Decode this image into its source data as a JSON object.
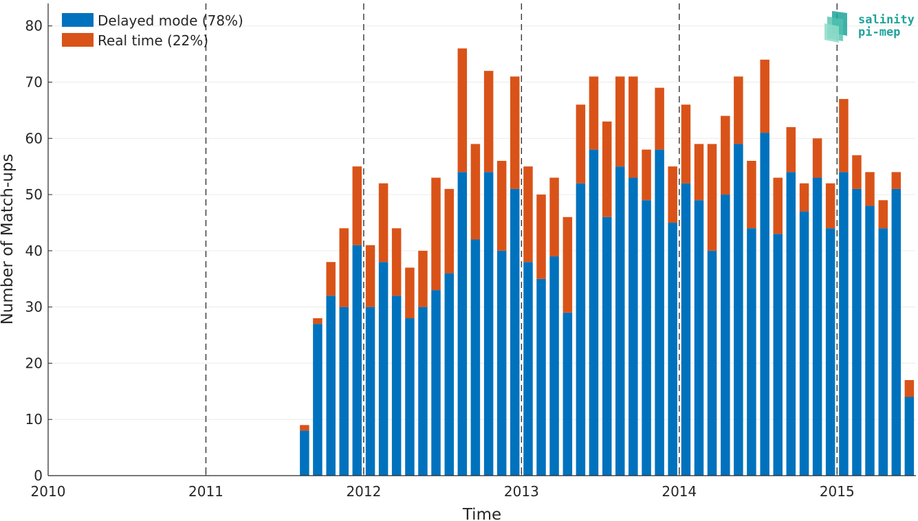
{
  "chart_data": {
    "type": "bar",
    "stacked": true,
    "xlabel": "Time",
    "ylabel": "Number of Match-ups",
    "xlim": [
      2010,
      2015.5
    ],
    "ylim": [
      0,
      84
    ],
    "x_ticks": [
      2010,
      2011,
      2012,
      2013,
      2014,
      2015
    ],
    "y_ticks": [
      0,
      10,
      20,
      30,
      40,
      50,
      60,
      70,
      80
    ],
    "year_dividers": [
      2011,
      2012,
      2013,
      2014,
      2015
    ],
    "grid": true,
    "legend_position": "top-left",
    "colors": {
      "delayed": "#0072bd",
      "realtime": "#d95319"
    },
    "x": [
      2011.625,
      2011.708,
      2011.792,
      2011.875,
      2011.958,
      2012.042,
      2012.125,
      2012.208,
      2012.292,
      2012.375,
      2012.458,
      2012.542,
      2012.625,
      2012.708,
      2012.792,
      2012.875,
      2012.958,
      2013.042,
      2013.125,
      2013.208,
      2013.292,
      2013.375,
      2013.458,
      2013.542,
      2013.625,
      2013.708,
      2013.792,
      2013.875,
      2013.958,
      2014.042,
      2014.125,
      2014.208,
      2014.292,
      2014.375,
      2014.458,
      2014.542,
      2014.625,
      2014.708,
      2014.792,
      2014.875,
      2014.958,
      2015.042,
      2015.125,
      2015.208,
      2015.292,
      2015.375,
      2015.458
    ],
    "series": [
      {
        "name": "Delayed mode (78%)",
        "values": [
          8,
          27,
          32,
          30,
          41,
          30,
          38,
          32,
          28,
          30,
          33,
          36,
          54,
          42,
          54,
          40,
          51,
          38,
          35,
          39,
          29,
          52,
          58,
          46,
          55,
          53,
          49,
          58,
          45,
          52,
          49,
          40,
          50,
          59,
          44,
          61,
          43,
          54,
          47,
          53,
          44,
          54,
          51,
          48,
          44,
          51,
          14
        ]
      },
      {
        "name": "Real time (22%)",
        "values": [
          1,
          1,
          6,
          14,
          14,
          11,
          14,
          12,
          9,
          10,
          20,
          15,
          22,
          17,
          18,
          16,
          20,
          17,
          15,
          14,
          17,
          14,
          13,
          17,
          16,
          18,
          9,
          11,
          10,
          14,
          10,
          19,
          14,
          12,
          12,
          13,
          10,
          8,
          5,
          7,
          8,
          13,
          6,
          6,
          5,
          3,
          3
        ]
      }
    ]
  },
  "logo": {
    "line1": "salinity",
    "line2": "pi-mep"
  }
}
